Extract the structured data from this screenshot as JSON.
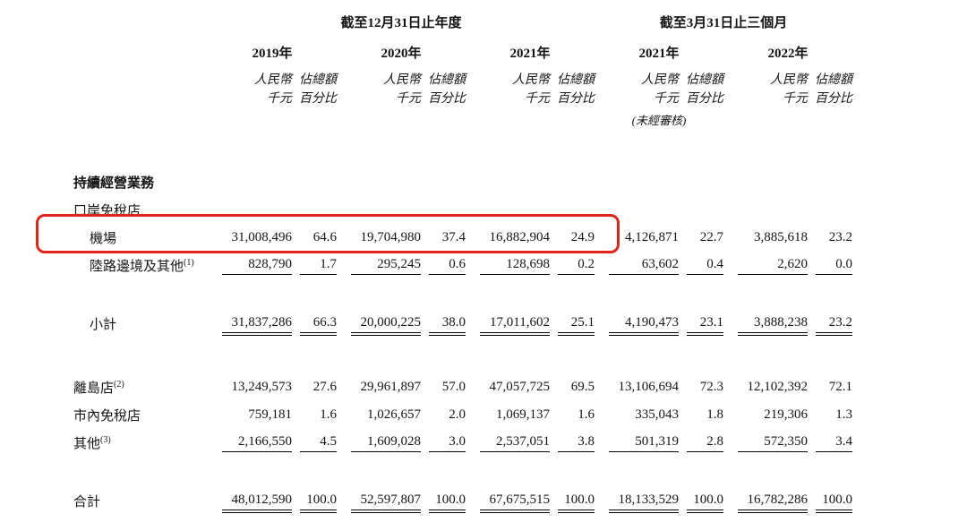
{
  "page": {
    "background": "#ffffff"
  },
  "header": {
    "annual_group": "截至12月31日止年度",
    "quarter_group": "截至3月31日止三個月",
    "amount_header": [
      "人民幣",
      "千元"
    ],
    "pct_header": [
      "佔總額",
      "百分比"
    ],
    "periods": [
      {
        "year": "2019年",
        "note": ""
      },
      {
        "year": "2020年",
        "note": ""
      },
      {
        "year": "2021年",
        "note": ""
      },
      {
        "year": "2021年",
        "note": "(未經審核)"
      },
      {
        "year": "2022年",
        "note": ""
      }
    ]
  },
  "rows": [
    {
      "type": "section",
      "label": "持續經營業務"
    },
    {
      "type": "subsection",
      "label": "口岸免稅店"
    },
    {
      "type": "data",
      "label": "機場",
      "sup": "",
      "indent": true,
      "highlight": true,
      "underline": "none",
      "values": [
        "31,008,496",
        "64.6",
        "19,704,980",
        "37.4",
        "16,882,904",
        "24.9",
        "4,126,871",
        "22.7",
        "3,885,618",
        "23.2"
      ]
    },
    {
      "type": "data",
      "label": "陸路邊境及其他",
      "sup": "(1)",
      "indent": true,
      "highlight": false,
      "underline": "single",
      "values": [
        "828,790",
        "1.7",
        "295,245",
        "0.6",
        "128,698",
        "0.2",
        "63,602",
        "0.4",
        "2,620",
        "0.0"
      ]
    },
    {
      "type": "spacer",
      "size": "md"
    },
    {
      "type": "data",
      "label": "小計",
      "sup": "",
      "indent": true,
      "highlight": false,
      "underline": "double",
      "values": [
        "31,837,286",
        "66.3",
        "20,000,225",
        "38.0",
        "17,011,602",
        "25.1",
        "4,190,473",
        "23.1",
        "3,888,238",
        "23.2"
      ]
    },
    {
      "type": "spacer",
      "size": "lg"
    },
    {
      "type": "data",
      "label": "離島店",
      "sup": "(2)",
      "indent": false,
      "highlight": false,
      "underline": "none",
      "values": [
        "13,249,573",
        "27.6",
        "29,961,897",
        "57.0",
        "47,057,725",
        "69.5",
        "13,106,694",
        "72.3",
        "12,102,392",
        "72.1"
      ]
    },
    {
      "type": "data",
      "label": "市內免稅店",
      "sup": "",
      "indent": false,
      "highlight": false,
      "underline": "none",
      "values": [
        "759,181",
        "1.6",
        "1,026,657",
        "2.0",
        "1,069,137",
        "1.6",
        "335,043",
        "1.8",
        "219,306",
        "1.3"
      ]
    },
    {
      "type": "data",
      "label": "其他",
      "sup": "(3)",
      "indent": false,
      "highlight": false,
      "underline": "single",
      "values": [
        "2,166,550",
        "4.5",
        "1,609,028",
        "3.0",
        "2,537,051",
        "3.8",
        "501,319",
        "2.8",
        "572,350",
        "3.4"
      ]
    },
    {
      "type": "spacer",
      "size": "md"
    },
    {
      "type": "data",
      "label": "合計",
      "sup": "",
      "indent": false,
      "highlight": false,
      "underline": "double",
      "values": [
        "48,012,590",
        "100.0",
        "52,597,807",
        "100.0",
        "67,675,515",
        "100.0",
        "18,133,529",
        "100.0",
        "16,782,286",
        "100.0"
      ]
    }
  ],
  "annotation": {
    "type": "highlight-box",
    "target_row": "機場",
    "color": "#e02619"
  }
}
